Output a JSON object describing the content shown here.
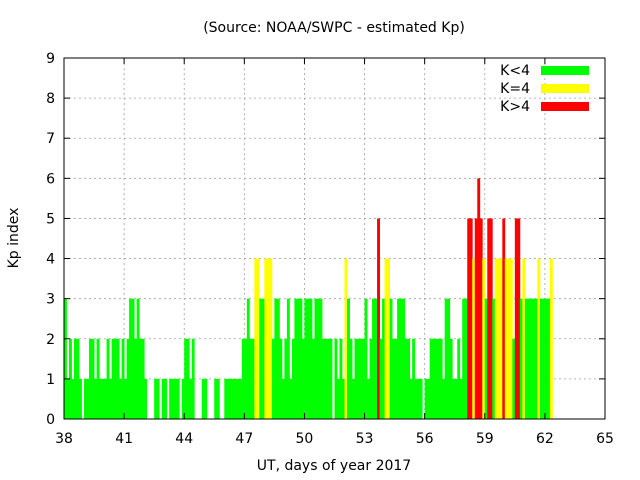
{
  "chart_data": {
    "type": "bar",
    "title": "(Source: NOAA/SWPC - estimated Kp)",
    "xlabel": "UT, days of year 2017",
    "ylabel": "Kp index",
    "xlim": [
      38,
      65
    ],
    "ylim": [
      0,
      9
    ],
    "xticks": [
      38,
      41,
      44,
      47,
      50,
      53,
      56,
      59,
      62,
      65
    ],
    "yticks": [
      0,
      1,
      2,
      3,
      4,
      5,
      6,
      7,
      8,
      9
    ],
    "grid": true,
    "legend_position": "top-right",
    "bin_width_days": 0.125,
    "legend": [
      {
        "label": "K<4",
        "color": "#00ff00"
      },
      {
        "label": "K=4",
        "color": "#ffff00"
      },
      {
        "label": "K>4",
        "color": "#ff0000"
      }
    ],
    "colors": {
      "low": "#00ff00",
      "storm": "#ffff00",
      "severe": "#ff0000"
    },
    "values": [
      3,
      1,
      2,
      1,
      2,
      2,
      1,
      0,
      1,
      1,
      2,
      2,
      1,
      2,
      1,
      1,
      1,
      2,
      1,
      2,
      2,
      2,
      1,
      2,
      1,
      2,
      3,
      3,
      2,
      3,
      2,
      2,
      1,
      0,
      0,
      0,
      1,
      1,
      0,
      1,
      1,
      0,
      1,
      1,
      1,
      1,
      0,
      1,
      2,
      2,
      1,
      2,
      0,
      0,
      0,
      1,
      1,
      0,
      0,
      0,
      1,
      1,
      0,
      0,
      1,
      1,
      1,
      1,
      1,
      1,
      1,
      2,
      2,
      3,
      2,
      2,
      4,
      4,
      3,
      3,
      4,
      4,
      4,
      2,
      3,
      3,
      2,
      1,
      2,
      3,
      1,
      2,
      3,
      3,
      3,
      2,
      3,
      3,
      3,
      2,
      3,
      3,
      3,
      2,
      2,
      2,
      2,
      0,
      2,
      1,
      2,
      1,
      4,
      3,
      2,
      1,
      2,
      2,
      2,
      2,
      3,
      1,
      2,
      3,
      3,
      5,
      2,
      3,
      4,
      4,
      3,
      2,
      2,
      3,
      3,
      3,
      2,
      2,
      1,
      2,
      1,
      1,
      1,
      0,
      1,
      1,
      2,
      2,
      2,
      2,
      2,
      1,
      3,
      3,
      2,
      1,
      1,
      2,
      1,
      3,
      3,
      5,
      5,
      4,
      5,
      6,
      5,
      4,
      3,
      5,
      5,
      3,
      4,
      4,
      4,
      5,
      4,
      4,
      4,
      2,
      5,
      5,
      3,
      4,
      3,
      3,
      3,
      3,
      3,
      4,
      3,
      3,
      3,
      3,
      4
    ]
  }
}
